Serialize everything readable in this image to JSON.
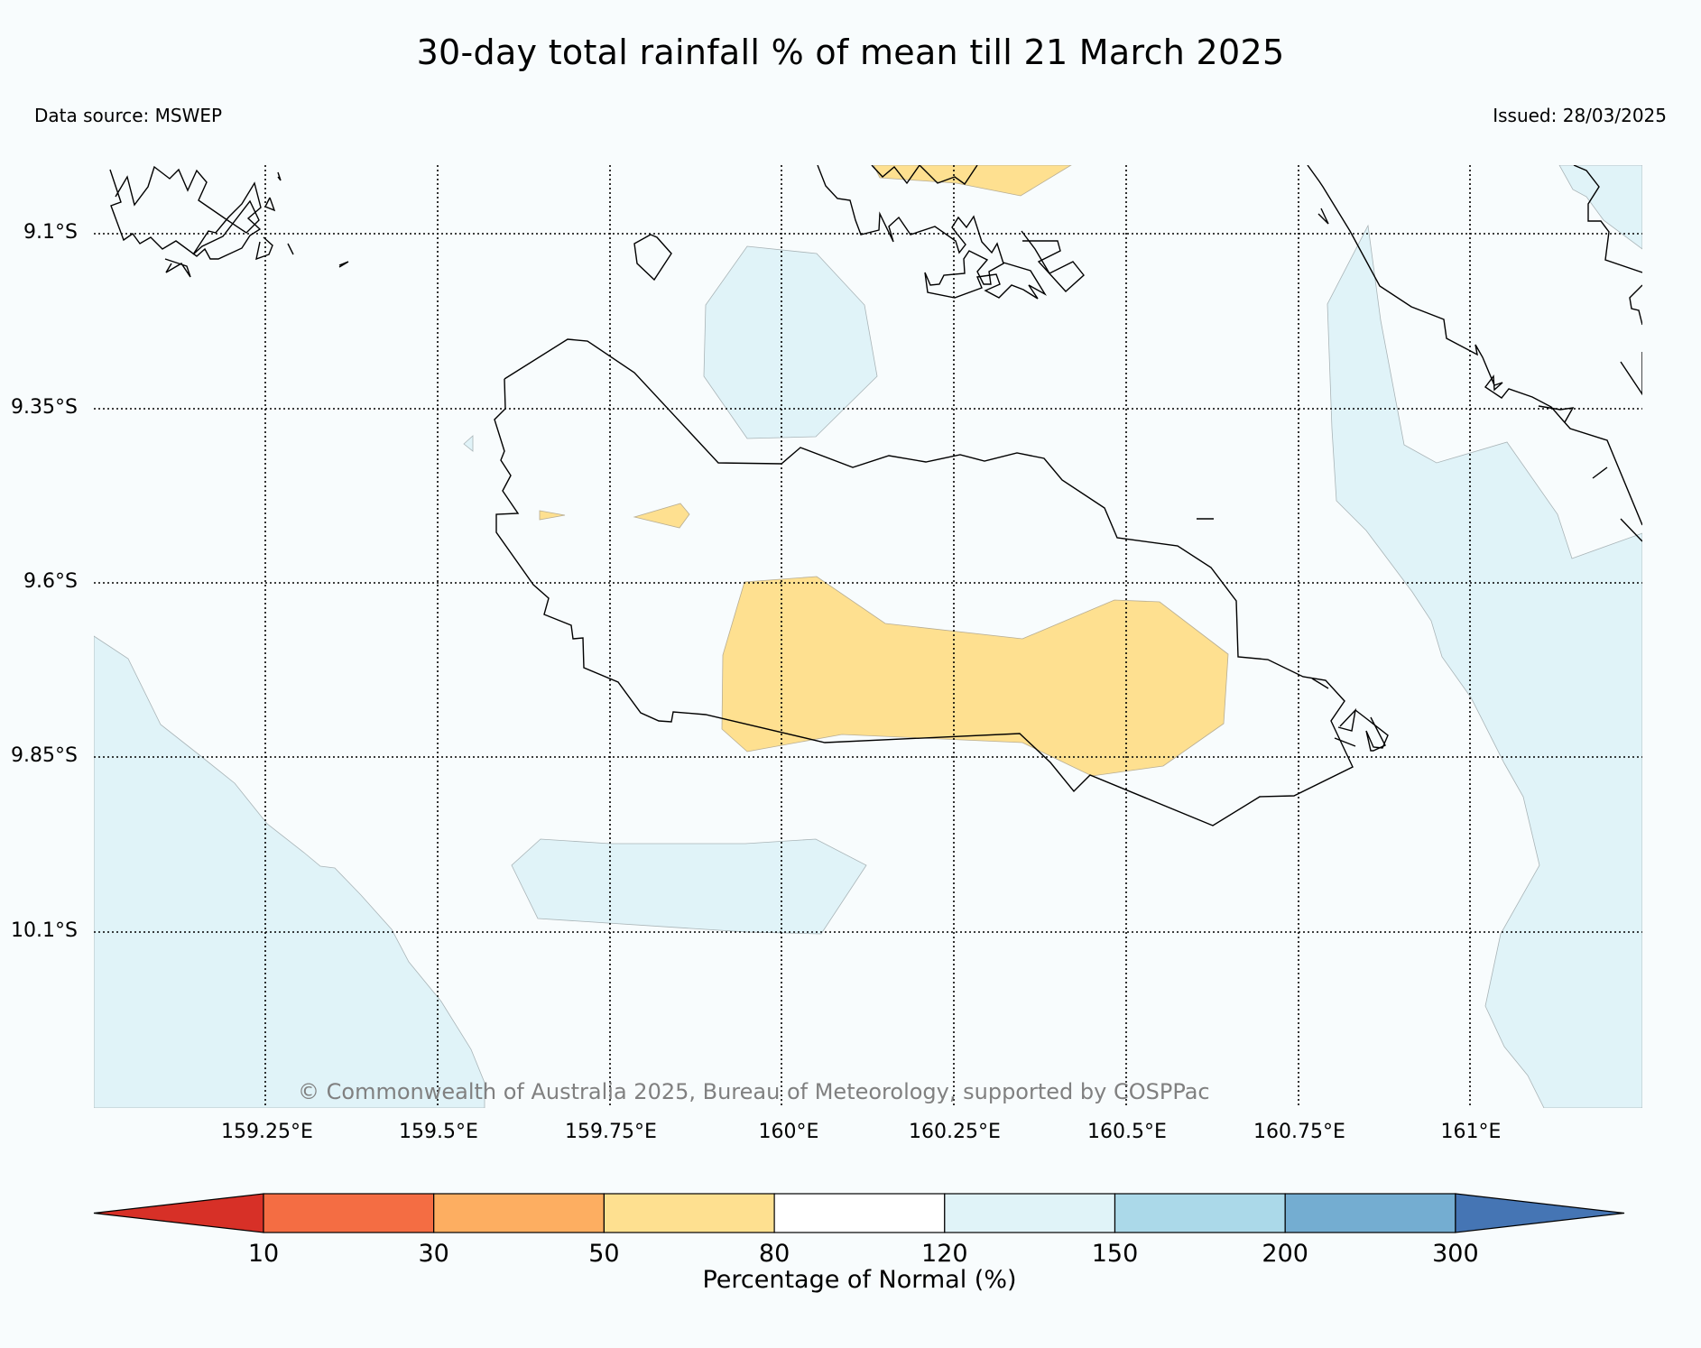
{
  "title": "30-day total rainfall % of mean till 21 March 2025",
  "data_source": "Data source: MSWEP",
  "issued": "Issued: 28/03/2025",
  "copyright": "© Commonwealth of Australia 2025, Bureau of Meteorology, supported by COSPPac",
  "map": {
    "lat_labels": [
      "9.1°S",
      "9.35°S",
      "9.6°S",
      "9.85°S",
      "10.1°S"
    ],
    "lon_labels": [
      "159.25°E",
      "159.5°E",
      "159.75°E",
      "160°E",
      "160.25°E",
      "160.5°E",
      "160.75°E",
      "161°E"
    ],
    "lat_range": [
      -10.34,
      -8.99
    ],
    "lon_range": [
      159.0,
      161.25
    ]
  },
  "colorbar": {
    "title": "Percentage of Normal (%)",
    "ticks": [
      "10",
      "30",
      "50",
      "80",
      "120",
      "150",
      "200",
      "300"
    ],
    "bins": [
      {
        "range": "<10",
        "color": "#d73027"
      },
      {
        "range": "10-30",
        "color": "#f46d43"
      },
      {
        "range": "30-50",
        "color": "#fdae61"
      },
      {
        "range": "50-80",
        "color": "#fee090"
      },
      {
        "range": "80-120",
        "color": "#ffffff"
      },
      {
        "range": "120-150",
        "color": "#e0f3f8"
      },
      {
        "range": "150-200",
        "color": "#abd9e9"
      },
      {
        "range": "200-300",
        "color": "#74add1"
      },
      {
        "range": ">300",
        "color": "#4575b4"
      }
    ]
  },
  "colors": {
    "background": "#f8fcfd",
    "wet_fill": "#e0f3f8",
    "dry_fill": "#fee090"
  }
}
